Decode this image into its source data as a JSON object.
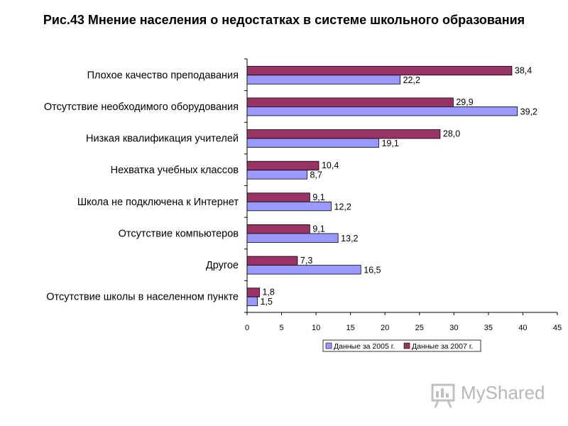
{
  "title": "Рис.43   Мнение населения о недостатках в системе школьного образования",
  "watermark": {
    "text": "MyShared"
  },
  "chart_data": {
    "type": "bar",
    "orientation": "horizontal",
    "title": "Рис.43   Мнение населения о недостатках в системе школьного образования",
    "categories": [
      "Плохое качество преподавания",
      "Отсутствие необходимого оборудования",
      "Низкая квалификация учителей",
      "Нехватка учебных классов",
      "Школа не подключена к Интернет",
      "Отсутствие  компьютеров",
      "Другое",
      "Отсутствие школы в населенном пункте"
    ],
    "series": [
      {
        "name": "Данные за 2005 г.",
        "color": "#9999ff",
        "values": [
          22.2,
          39.2,
          19.1,
          8.7,
          12.2,
          13.2,
          16.5,
          1.5
        ],
        "labels": [
          "22,2",
          "39,2",
          "19,1",
          "8,7",
          "12,2",
          "13,2",
          "16,5",
          "1,5"
        ]
      },
      {
        "name": "Данные за 2007 г.",
        "color": "#993366",
        "values": [
          38.4,
          29.9,
          28.0,
          10.4,
          9.1,
          9.1,
          7.3,
          1.8
        ],
        "labels": [
          "38,4",
          "29,9",
          "28,0",
          "10,4",
          "9,1",
          "9,1",
          "7,3",
          "1,8"
        ]
      }
    ],
    "xlim": [
      0,
      45
    ],
    "xticks": [
      "0",
      "5",
      "10",
      "15",
      "20",
      "25",
      "30",
      "35",
      "40",
      "45"
    ],
    "legend": "bottom",
    "grid": false
  }
}
